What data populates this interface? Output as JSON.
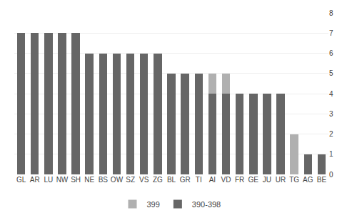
{
  "chart_data": {
    "type": "bar",
    "stacked": true,
    "categories": [
      "GL",
      "AR",
      "LU",
      "NW",
      "SH",
      "NE",
      "BS",
      "OW",
      "SZ",
      "VS",
      "ZG",
      "BL",
      "GR",
      "TI",
      "AI",
      "VD",
      "FR",
      "GE",
      "JU",
      "UR",
      "TG",
      "AG",
      "BE"
    ],
    "series": [
      {
        "name": "390-398",
        "color": "#666666",
        "values": [
          7,
          7,
          7,
          7,
          7,
          6,
          6,
          6,
          6,
          6,
          6,
          5,
          5,
          5,
          4,
          4,
          4,
          4,
          4,
          4,
          0,
          1,
          1
        ]
      },
      {
        "name": "399",
        "color": "#b0b0b0",
        "values": [
          0,
          0,
          0,
          0,
          0,
          0,
          0,
          0,
          0,
          0,
          0,
          0,
          0,
          0,
          1,
          1,
          0,
          0,
          0,
          0,
          2,
          0,
          0
        ]
      }
    ],
    "ylim": [
      0,
      8
    ],
    "yticks": [
      0,
      1,
      2,
      3,
      4,
      5,
      6,
      7,
      8
    ],
    "grid": true,
    "legend": "bottom"
  }
}
